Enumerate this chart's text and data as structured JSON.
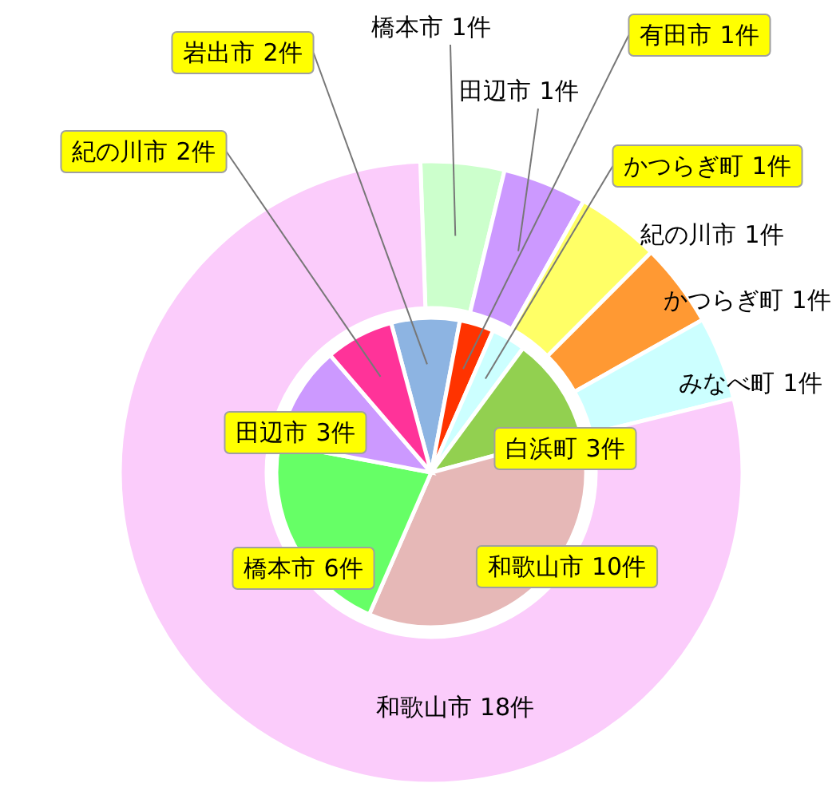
{
  "chart_data": [
    {
      "type": "donut",
      "categories": [
        "橋本市",
        "田辺市",
        "紀の川市",
        "かつらぎ町",
        "みなべ町",
        "和歌山市"
      ],
      "values": [
        1,
        1,
        1,
        1,
        1,
        18
      ],
      "value_labels": [
        "1件",
        "1件",
        "1件",
        "1件",
        "1件",
        "18件"
      ],
      "colors": [
        "#ccffcc",
        "#cc99ff",
        "#ffff66",
        "#ff9933",
        "#ccffff",
        "#fbccfb"
      ]
    },
    {
      "type": "pie",
      "categories": [
        "岩出市",
        "有田市",
        "かつらぎ町",
        "白浜町",
        "和歌山市",
        "橋本市",
        "田辺市",
        "紀の川市"
      ],
      "values": [
        2,
        1,
        1,
        3,
        10,
        6,
        3,
        2
      ],
      "value_labels": [
        "2件",
        "1件",
        "1件",
        "3件",
        "10件",
        "6件",
        "3件",
        "2件"
      ],
      "colors": [
        "#8db4e2",
        "#ff3300",
        "#ccffff",
        "#92d050",
        "#e6b8b7",
        "#66ff66",
        "#cc99ff",
        "#ff3399"
      ]
    }
  ]
}
